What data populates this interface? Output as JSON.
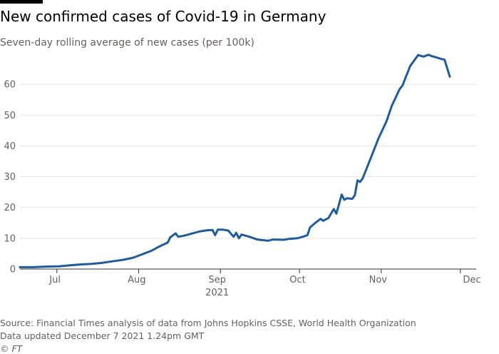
{
  "header": {
    "title": "New confirmed cases of Covid-19 in Germany",
    "subtitle": "Seven-day rolling average of new cases (per 100k)"
  },
  "footer": {
    "source": "Source: Financial Times analysis of data from Johns Hopkins CSSE, World Health Organization",
    "updated": "Data updated December 7 2021 1.24pm GMT",
    "copyright": "© FT"
  },
  "colors": {
    "line": "#1f5c99",
    "gridline": "#e6e2de",
    "baseline": "#33302e",
    "text": "#66605c",
    "background": "#ffffff"
  },
  "chart_data": {
    "type": "line",
    "title": "New confirmed cases of Covid-19 in Germany",
    "subtitle": "Seven-day rolling average of new cases (per 100k)",
    "ylim": [
      0,
      70
    ],
    "yticks": [
      0,
      10,
      20,
      30,
      40,
      50,
      60
    ],
    "xlim": [
      "2021-06-17",
      "2021-12-07"
    ],
    "xticks": [
      {
        "date": "2021-07-01",
        "label": "Jul"
      },
      {
        "date": "2021-08-01",
        "label": "Aug"
      },
      {
        "date": "2021-09-01",
        "label": "Sep"
      },
      {
        "date": "2021-10-01",
        "label": "Oct"
      },
      {
        "date": "2021-11-01",
        "label": "Nov"
      },
      {
        "date": "2021-12-01",
        "label": "Dec"
      }
    ],
    "year_label": "2021",
    "grid": "horizontal",
    "series": [
      {
        "points": [
          [
            "2021-06-17",
            0.6
          ],
          [
            "2021-06-22",
            0.6
          ],
          [
            "2021-06-27",
            0.8
          ],
          [
            "2021-07-02",
            0.9
          ],
          [
            "2021-07-06",
            1.2
          ],
          [
            "2021-07-10",
            1.5
          ],
          [
            "2021-07-14",
            1.7
          ],
          [
            "2021-07-18",
            2.0
          ],
          [
            "2021-07-22",
            2.5
          ],
          [
            "2021-07-26",
            3.0
          ],
          [
            "2021-07-30",
            3.7
          ],
          [
            "2021-08-03",
            5.0
          ],
          [
            "2021-08-06",
            6.0
          ],
          [
            "2021-08-09",
            7.4
          ],
          [
            "2021-08-12",
            8.6
          ],
          [
            "2021-08-13",
            10.3
          ],
          [
            "2021-08-15",
            11.6
          ],
          [
            "2021-08-16",
            10.5
          ],
          [
            "2021-08-18",
            10.8
          ],
          [
            "2021-08-21",
            11.5
          ],
          [
            "2021-08-24",
            12.2
          ],
          [
            "2021-08-27",
            12.6
          ],
          [
            "2021-08-29",
            12.7
          ],
          [
            "2021-08-30",
            11.0
          ],
          [
            "2021-08-31",
            12.8
          ],
          [
            "2021-09-02",
            12.8
          ],
          [
            "2021-09-04",
            12.5
          ],
          [
            "2021-09-06",
            10.5
          ],
          [
            "2021-09-07",
            11.8
          ],
          [
            "2021-09-08",
            10.0
          ],
          [
            "2021-09-09",
            11.2
          ],
          [
            "2021-09-12",
            10.5
          ],
          [
            "2021-09-15",
            9.6
          ],
          [
            "2021-09-19",
            9.2
          ],
          [
            "2021-09-21",
            9.6
          ],
          [
            "2021-09-25",
            9.5
          ],
          [
            "2021-09-27",
            9.8
          ],
          [
            "2021-09-30",
            10.0
          ],
          [
            "2021-10-02",
            10.4
          ],
          [
            "2021-10-04",
            11.0
          ],
          [
            "2021-10-05",
            13.5
          ],
          [
            "2021-10-07",
            15.0
          ],
          [
            "2021-10-09",
            16.3
          ],
          [
            "2021-10-10",
            15.7
          ],
          [
            "2021-10-12",
            16.6
          ],
          [
            "2021-10-14",
            19.5
          ],
          [
            "2021-10-15",
            18.0
          ],
          [
            "2021-10-17",
            24.2
          ],
          [
            "2021-10-18",
            22.5
          ],
          [
            "2021-10-19",
            23.0
          ],
          [
            "2021-10-21",
            22.8
          ],
          [
            "2021-10-22",
            24.0
          ],
          [
            "2021-10-23",
            28.8
          ],
          [
            "2021-10-24",
            28.3
          ],
          [
            "2021-10-25",
            29.5
          ],
          [
            "2021-10-28",
            36.0
          ],
          [
            "2021-10-31",
            42.5
          ],
          [
            "2021-11-03",
            48.0
          ],
          [
            "2021-11-05",
            53.0
          ],
          [
            "2021-11-08",
            58.5
          ],
          [
            "2021-11-09",
            59.5
          ],
          [
            "2021-11-12",
            66.0
          ],
          [
            "2021-11-15",
            69.5
          ],
          [
            "2021-11-17",
            69.0
          ],
          [
            "2021-11-19",
            69.6
          ],
          [
            "2021-11-20",
            69.2
          ],
          [
            "2021-11-22",
            68.7
          ],
          [
            "2021-11-24",
            68.2
          ],
          [
            "2021-11-25",
            68.0
          ],
          [
            "2021-11-27",
            62.5
          ]
        ]
      }
    ]
  }
}
